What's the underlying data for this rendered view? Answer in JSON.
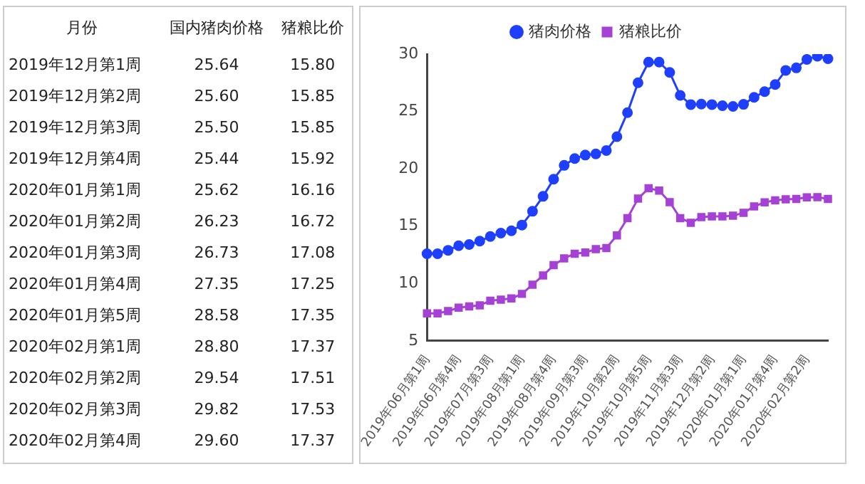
{
  "chart_data": [
    {
      "type": "other",
      "xlabel": "月份",
      "categories": [
        "2019年12月第1周",
        "2019年12月第2周",
        "2019年12月第3周",
        "2019年12月第4周",
        "2020年01月第1周",
        "2020年01月第2周",
        "2020年01月第3周",
        "2020年01月第4周",
        "2020年01月第5周",
        "2020年02月第1周",
        "2020年02月第2周",
        "2020年02月第3周",
        "2020年02月第4周"
      ],
      "series": [
        {
          "name": "国内猪肉价格",
          "values": [
            25.64,
            25.6,
            25.5,
            25.44,
            25.62,
            26.23,
            26.73,
            27.35,
            28.58,
            28.8,
            29.54,
            29.82,
            29.6
          ],
          "value_labels": [
            "25.64",
            "25.60",
            "25.50",
            "25.44",
            "25.62",
            "26.23",
            "26.73",
            "27.35",
            "28.58",
            "28.80",
            "29.54",
            "29.82",
            "29.60"
          ]
        },
        {
          "name": "猪粮比价",
          "values": [
            15.8,
            15.85,
            15.85,
            15.92,
            16.16,
            16.72,
            17.08,
            17.25,
            17.35,
            17.37,
            17.51,
            17.53,
            17.37
          ],
          "value_labels": [
            "15.80",
            "15.85",
            "15.85",
            "15.92",
            "16.16",
            "16.72",
            "17.08",
            "17.25",
            "17.35",
            "17.37",
            "17.51",
            "17.53",
            "17.37"
          ]
        }
      ]
    },
    {
      "type": "line",
      "legend": "top",
      "grid": false,
      "ylim": [
        5,
        30
      ],
      "yticks": [
        5,
        10,
        15,
        20,
        25,
        30
      ],
      "categories": [
        "2019年06月第1周",
        null,
        null,
        "2019年06月第4周",
        null,
        null,
        "2019年07月第3周",
        null,
        null,
        "2019年08月第1周",
        null,
        null,
        "2019年08月第4周",
        null,
        null,
        "2019年09月第3周",
        null,
        null,
        "2019年10月第2周",
        null,
        null,
        "2019年10月第5周",
        null,
        null,
        "2019年11月第3周",
        null,
        null,
        "2019年12月第2周",
        null,
        null,
        "2020年01月第1周",
        null,
        null,
        "2020年01月第4周",
        null,
        null,
        "2020年02月第2周",
        null,
        null
      ],
      "series": [
        {
          "name": "猪肉价格",
          "color": "#1f3fff",
          "marker": "circle",
          "values": [
            12.6,
            12.6,
            12.9,
            13.3,
            13.4,
            13.7,
            14.1,
            14.4,
            14.6,
            15.1,
            16.3,
            17.6,
            19.1,
            20.3,
            20.9,
            21.2,
            21.3,
            21.6,
            22.8,
            24.9,
            27.5,
            29.3,
            29.3,
            28.4,
            26.4,
            25.6,
            25.64,
            25.6,
            25.5,
            25.44,
            25.62,
            26.23,
            26.73,
            27.35,
            28.58,
            28.8,
            29.54,
            29.82,
            29.6
          ]
        },
        {
          "name": "猪粮比价",
          "color": "#a641d6",
          "marker": "square",
          "values": [
            7.4,
            7.4,
            7.6,
            7.9,
            8.0,
            8.1,
            8.5,
            8.6,
            8.7,
            9.1,
            9.9,
            10.7,
            11.6,
            12.2,
            12.6,
            12.7,
            13.0,
            13.1,
            14.2,
            15.7,
            17.4,
            18.3,
            18.1,
            17.1,
            15.7,
            15.3,
            15.8,
            15.85,
            15.85,
            15.92,
            16.16,
            16.72,
            17.08,
            17.25,
            17.35,
            17.37,
            17.51,
            17.53,
            17.37
          ]
        }
      ]
    }
  ]
}
